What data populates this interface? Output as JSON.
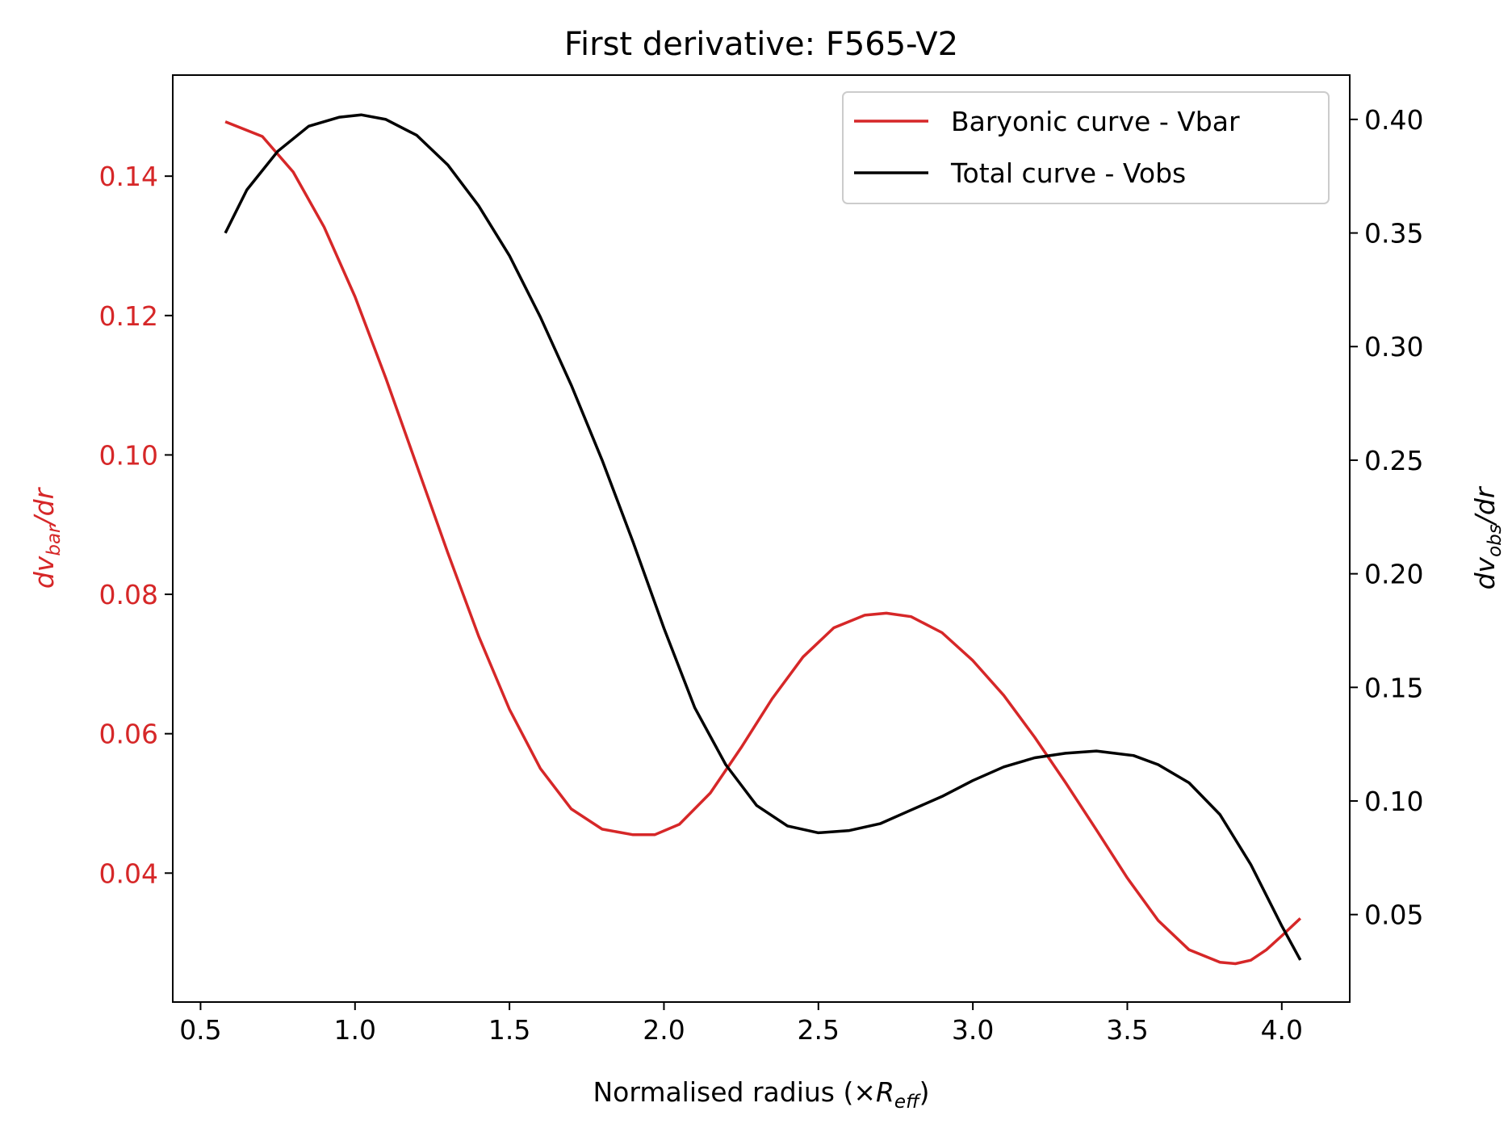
{
  "chart_data": {
    "type": "line",
    "title": "First derivative: F565-V2",
    "xlabel": {
      "base": "Normalised radius (×",
      "italic": "R",
      "sub": "eff",
      "tail": ")"
    },
    "ylabel_left": {
      "prefix": "dv",
      "sub": "bar",
      "suffix": "/dr"
    },
    "ylabel_right": {
      "prefix": "dv",
      "sub": "obs",
      "suffix": "/dr"
    },
    "xlim": [
      0.41,
      4.22
    ],
    "ylim_left": [
      0.0215,
      0.1545
    ],
    "ylim_right": [
      0.0115,
      0.4195
    ],
    "xticks": [
      0.5,
      1.0,
      1.5,
      2.0,
      2.5,
      3.0,
      3.5,
      4.0
    ],
    "xtick_labels": [
      "0.5",
      "1.0",
      "1.5",
      "2.0",
      "2.5",
      "3.0",
      "3.5",
      "4.0"
    ],
    "yticks_left": [
      0.04,
      0.06,
      0.08,
      0.1,
      0.12,
      0.14
    ],
    "ytick_labels_left": [
      "0.04",
      "0.06",
      "0.08",
      "0.10",
      "0.12",
      "0.14"
    ],
    "yticks_right": [
      0.05,
      0.1,
      0.15,
      0.2,
      0.25,
      0.3,
      0.35,
      0.4
    ],
    "ytick_labels_right": [
      "0.05",
      "0.10",
      "0.15",
      "0.20",
      "0.25",
      "0.30",
      "0.35",
      "0.40"
    ],
    "legend_position": "top-right",
    "grid": false,
    "series": [
      {
        "name": "Baryonic curve - Vbar",
        "axis": "left",
        "color": "#d62728",
        "x": [
          0.58,
          0.7,
          0.8,
          0.9,
          1.0,
          1.1,
          1.2,
          1.3,
          1.4,
          1.5,
          1.6,
          1.7,
          1.8,
          1.9,
          1.97,
          2.05,
          2.15,
          2.25,
          2.35,
          2.45,
          2.55,
          2.65,
          2.72,
          2.8,
          2.9,
          3.0,
          3.1,
          3.2,
          3.3,
          3.4,
          3.5,
          3.6,
          3.7,
          3.8,
          3.85,
          3.9,
          3.95,
          4.0,
          4.06
        ],
        "y": [
          0.1478,
          0.1457,
          0.1406,
          0.1327,
          0.1227,
          0.111,
          0.0985,
          0.086,
          0.074,
          0.0635,
          0.055,
          0.0492,
          0.0463,
          0.0455,
          0.0455,
          0.047,
          0.0515,
          0.058,
          0.065,
          0.071,
          0.0752,
          0.077,
          0.0773,
          0.0768,
          0.0745,
          0.0705,
          0.0655,
          0.0595,
          0.053,
          0.0462,
          0.0393,
          0.0332,
          0.029,
          0.0272,
          0.027,
          0.0275,
          0.029,
          0.031,
          0.0335
        ]
      },
      {
        "name": "Total curve - Vobs",
        "axis": "right",
        "color": "#000000",
        "x": [
          0.58,
          0.65,
          0.75,
          0.85,
          0.95,
          1.02,
          1.1,
          1.2,
          1.3,
          1.4,
          1.5,
          1.6,
          1.7,
          1.8,
          1.9,
          2.0,
          2.1,
          2.2,
          2.3,
          2.4,
          2.5,
          2.6,
          2.7,
          2.8,
          2.9,
          3.0,
          3.1,
          3.2,
          3.3,
          3.4,
          3.52,
          3.6,
          3.7,
          3.8,
          3.9,
          4.0,
          4.06
        ],
        "y": [
          0.35,
          0.369,
          0.386,
          0.397,
          0.401,
          0.402,
          0.4,
          0.393,
          0.38,
          0.362,
          0.34,
          0.313,
          0.283,
          0.25,
          0.214,
          0.176,
          0.141,
          0.116,
          0.098,
          0.089,
          0.086,
          0.087,
          0.09,
          0.096,
          0.102,
          0.109,
          0.115,
          0.119,
          0.121,
          0.122,
          0.12,
          0.116,
          0.108,
          0.094,
          0.072,
          0.045,
          0.03
        ]
      }
    ]
  }
}
